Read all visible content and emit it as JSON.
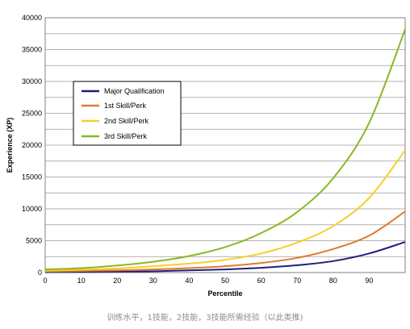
{
  "chart_data": {
    "type": "line",
    "xlabel": "Percentile",
    "ylabel": "Experience (XP)",
    "xlim": [
      0,
      100
    ],
    "ylim": [
      0,
      40000
    ],
    "x_ticks": [
      0,
      10,
      20,
      30,
      40,
      50,
      60,
      70,
      80,
      90
    ],
    "y_ticks": [
      0,
      5000,
      10000,
      15000,
      20000,
      25000,
      30000,
      35000,
      40000
    ],
    "x_tick_labels": [
      "0",
      "10",
      "20",
      "30",
      "40",
      "50",
      "60",
      "70",
      "80",
      "90"
    ],
    "y_tick_labels": [
      "0",
      "5000",
      "10000",
      "15000",
      "20000",
      "25000",
      "30000",
      "35000",
      "40000"
    ],
    "grid": "horizontal",
    "legend_position": "left-middle",
    "x": [
      0,
      10,
      20,
      30,
      40,
      50,
      60,
      70,
      80,
      90,
      100
    ],
    "series": [
      {
        "name": "Major Qualification",
        "color": "#1f1f7a",
        "values": [
          50,
          100,
          150,
          200,
          350,
          500,
          750,
          1150,
          1800,
          3000,
          4800
        ]
      },
      {
        "name": "1st Skill/Perk",
        "color": "#e07a2e",
        "values": [
          150,
          250,
          350,
          500,
          700,
          1000,
          1500,
          2300,
          3700,
          5800,
          9600
        ]
      },
      {
        "name": "2nd Skill/Perk",
        "color": "#f5cf2a",
        "values": [
          300,
          450,
          650,
          1000,
          1400,
          2000,
          3000,
          4700,
          7300,
          11700,
          19200
        ]
      },
      {
        "name": "3rd Skill/Perk",
        "color": "#8ab825",
        "values": [
          500,
          700,
          1100,
          1700,
          2600,
          4000,
          6200,
          9500,
          14800,
          23500,
          38200
        ]
      }
    ]
  },
  "caption": "训练水平，1技能，2技能，3技能所需经验（以此类推)"
}
